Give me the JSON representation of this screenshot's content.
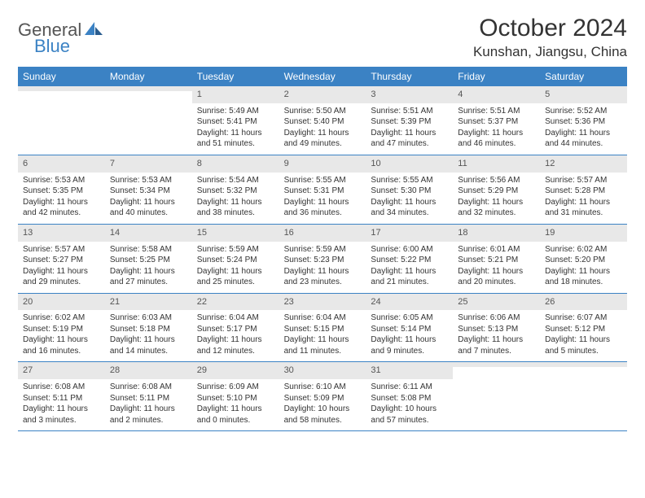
{
  "logo": {
    "text1": "General",
    "text2": "Blue"
  },
  "title": "October 2024",
  "location": "Kunshan, Jiangsu, China",
  "colors": {
    "header_bg": "#3b82c4",
    "header_text": "#ffffff",
    "daynum_bg": "#e8e8e8",
    "border": "#3b82c4",
    "body_text": "#333333",
    "logo_grey": "#555555",
    "logo_blue": "#3b82c4"
  },
  "typography": {
    "title_fontsize": 30,
    "location_fontsize": 17,
    "dayheader_fontsize": 12,
    "daynum_fontsize": 11,
    "body_fontsize": 10
  },
  "day_headers": [
    "Sunday",
    "Monday",
    "Tuesday",
    "Wednesday",
    "Thursday",
    "Friday",
    "Saturday"
  ],
  "weeks": [
    [
      {
        "num": "",
        "lines": []
      },
      {
        "num": "",
        "lines": []
      },
      {
        "num": "1",
        "lines": [
          "Sunrise: 5:49 AM",
          "Sunset: 5:41 PM",
          "Daylight: 11 hours",
          "and 51 minutes."
        ]
      },
      {
        "num": "2",
        "lines": [
          "Sunrise: 5:50 AM",
          "Sunset: 5:40 PM",
          "Daylight: 11 hours",
          "and 49 minutes."
        ]
      },
      {
        "num": "3",
        "lines": [
          "Sunrise: 5:51 AM",
          "Sunset: 5:39 PM",
          "Daylight: 11 hours",
          "and 47 minutes."
        ]
      },
      {
        "num": "4",
        "lines": [
          "Sunrise: 5:51 AM",
          "Sunset: 5:37 PM",
          "Daylight: 11 hours",
          "and 46 minutes."
        ]
      },
      {
        "num": "5",
        "lines": [
          "Sunrise: 5:52 AM",
          "Sunset: 5:36 PM",
          "Daylight: 11 hours",
          "and 44 minutes."
        ]
      }
    ],
    [
      {
        "num": "6",
        "lines": [
          "Sunrise: 5:53 AM",
          "Sunset: 5:35 PM",
          "Daylight: 11 hours",
          "and 42 minutes."
        ]
      },
      {
        "num": "7",
        "lines": [
          "Sunrise: 5:53 AM",
          "Sunset: 5:34 PM",
          "Daylight: 11 hours",
          "and 40 minutes."
        ]
      },
      {
        "num": "8",
        "lines": [
          "Sunrise: 5:54 AM",
          "Sunset: 5:32 PM",
          "Daylight: 11 hours",
          "and 38 minutes."
        ]
      },
      {
        "num": "9",
        "lines": [
          "Sunrise: 5:55 AM",
          "Sunset: 5:31 PM",
          "Daylight: 11 hours",
          "and 36 minutes."
        ]
      },
      {
        "num": "10",
        "lines": [
          "Sunrise: 5:55 AM",
          "Sunset: 5:30 PM",
          "Daylight: 11 hours",
          "and 34 minutes."
        ]
      },
      {
        "num": "11",
        "lines": [
          "Sunrise: 5:56 AM",
          "Sunset: 5:29 PM",
          "Daylight: 11 hours",
          "and 32 minutes."
        ]
      },
      {
        "num": "12",
        "lines": [
          "Sunrise: 5:57 AM",
          "Sunset: 5:28 PM",
          "Daylight: 11 hours",
          "and 31 minutes."
        ]
      }
    ],
    [
      {
        "num": "13",
        "lines": [
          "Sunrise: 5:57 AM",
          "Sunset: 5:27 PM",
          "Daylight: 11 hours",
          "and 29 minutes."
        ]
      },
      {
        "num": "14",
        "lines": [
          "Sunrise: 5:58 AM",
          "Sunset: 5:25 PM",
          "Daylight: 11 hours",
          "and 27 minutes."
        ]
      },
      {
        "num": "15",
        "lines": [
          "Sunrise: 5:59 AM",
          "Sunset: 5:24 PM",
          "Daylight: 11 hours",
          "and 25 minutes."
        ]
      },
      {
        "num": "16",
        "lines": [
          "Sunrise: 5:59 AM",
          "Sunset: 5:23 PM",
          "Daylight: 11 hours",
          "and 23 minutes."
        ]
      },
      {
        "num": "17",
        "lines": [
          "Sunrise: 6:00 AM",
          "Sunset: 5:22 PM",
          "Daylight: 11 hours",
          "and 21 minutes."
        ]
      },
      {
        "num": "18",
        "lines": [
          "Sunrise: 6:01 AM",
          "Sunset: 5:21 PM",
          "Daylight: 11 hours",
          "and 20 minutes."
        ]
      },
      {
        "num": "19",
        "lines": [
          "Sunrise: 6:02 AM",
          "Sunset: 5:20 PM",
          "Daylight: 11 hours",
          "and 18 minutes."
        ]
      }
    ],
    [
      {
        "num": "20",
        "lines": [
          "Sunrise: 6:02 AM",
          "Sunset: 5:19 PM",
          "Daylight: 11 hours",
          "and 16 minutes."
        ]
      },
      {
        "num": "21",
        "lines": [
          "Sunrise: 6:03 AM",
          "Sunset: 5:18 PM",
          "Daylight: 11 hours",
          "and 14 minutes."
        ]
      },
      {
        "num": "22",
        "lines": [
          "Sunrise: 6:04 AM",
          "Sunset: 5:17 PM",
          "Daylight: 11 hours",
          "and 12 minutes."
        ]
      },
      {
        "num": "23",
        "lines": [
          "Sunrise: 6:04 AM",
          "Sunset: 5:15 PM",
          "Daylight: 11 hours",
          "and 11 minutes."
        ]
      },
      {
        "num": "24",
        "lines": [
          "Sunrise: 6:05 AM",
          "Sunset: 5:14 PM",
          "Daylight: 11 hours",
          "and 9 minutes."
        ]
      },
      {
        "num": "25",
        "lines": [
          "Sunrise: 6:06 AM",
          "Sunset: 5:13 PM",
          "Daylight: 11 hours",
          "and 7 minutes."
        ]
      },
      {
        "num": "26",
        "lines": [
          "Sunrise: 6:07 AM",
          "Sunset: 5:12 PM",
          "Daylight: 11 hours",
          "and 5 minutes."
        ]
      }
    ],
    [
      {
        "num": "27",
        "lines": [
          "Sunrise: 6:08 AM",
          "Sunset: 5:11 PM",
          "Daylight: 11 hours",
          "and 3 minutes."
        ]
      },
      {
        "num": "28",
        "lines": [
          "Sunrise: 6:08 AM",
          "Sunset: 5:11 PM",
          "Daylight: 11 hours",
          "and 2 minutes."
        ]
      },
      {
        "num": "29",
        "lines": [
          "Sunrise: 6:09 AM",
          "Sunset: 5:10 PM",
          "Daylight: 11 hours",
          "and 0 minutes."
        ]
      },
      {
        "num": "30",
        "lines": [
          "Sunrise: 6:10 AM",
          "Sunset: 5:09 PM",
          "Daylight: 10 hours",
          "and 58 minutes."
        ]
      },
      {
        "num": "31",
        "lines": [
          "Sunrise: 6:11 AM",
          "Sunset: 5:08 PM",
          "Daylight: 10 hours",
          "and 57 minutes."
        ]
      },
      {
        "num": "",
        "lines": []
      },
      {
        "num": "",
        "lines": []
      }
    ]
  ]
}
